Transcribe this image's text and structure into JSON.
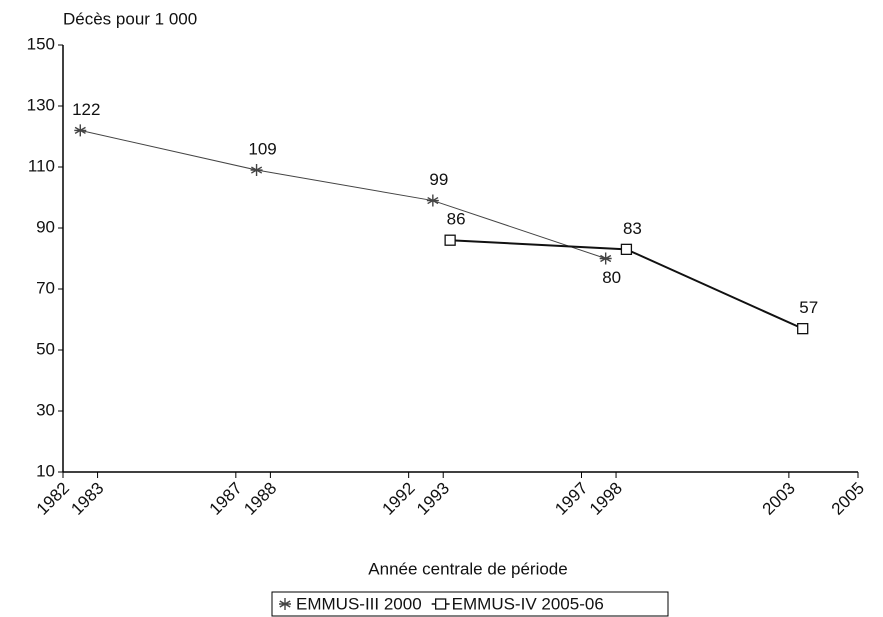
{
  "chart_data": {
    "type": "line",
    "y_label": "Décès pour 1 000",
    "x_label": "Année centrale de période",
    "xlim": [
      1982,
      2005
    ],
    "xticks": [
      1982,
      1983,
      1987,
      1988,
      1992,
      1993,
      1997,
      1998,
      2003,
      2005
    ],
    "ylim": [
      10,
      150
    ],
    "yticks": [
      10,
      30,
      50,
      70,
      90,
      110,
      130,
      150
    ],
    "series": [
      {
        "name": "EMMUS-III 2000",
        "color": "#444444",
        "marker": "star",
        "x": [
          1982.5,
          1987.6,
          1992.7,
          1997.7
        ],
        "values": [
          122,
          109,
          99,
          80
        ]
      },
      {
        "name": "EMMUS-IV 2005-06",
        "color": "#111111",
        "marker": "square",
        "x": [
          1993.2,
          1998.3,
          2003.4
        ],
        "values": [
          86,
          83,
          57
        ]
      }
    ]
  }
}
